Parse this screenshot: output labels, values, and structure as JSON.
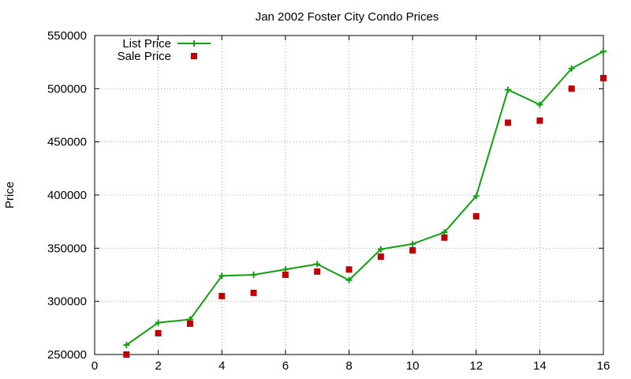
{
  "chart_data": {
    "type": "line",
    "title": "Jan 2002 Foster City Condo Prices",
    "xlabel": "",
    "ylabel": "Price",
    "xlim": [
      0,
      16
    ],
    "ylim": [
      250000,
      550000
    ],
    "x_ticks": [
      0,
      2,
      4,
      6,
      8,
      10,
      12,
      14,
      16
    ],
    "y_ticks": [
      250000,
      300000,
      350000,
      400000,
      450000,
      500000,
      550000
    ],
    "grid": true,
    "legend_position": "top-left",
    "series": [
      {
        "name": "List Price",
        "style": "linespoints",
        "marker": "plus",
        "color": "#10a010",
        "x": [
          1,
          2,
          3,
          4,
          5,
          6,
          7,
          8,
          9,
          10,
          11,
          12,
          13,
          14,
          15,
          16
        ],
        "values": [
          259000,
          280000,
          283000,
          324000,
          325000,
          330000,
          335000,
          320000,
          349000,
          354000,
          365000,
          399000,
          499000,
          485000,
          519000,
          535000
        ]
      },
      {
        "name": "Sale Price",
        "style": "points",
        "marker": "square",
        "color": "#c00000",
        "x": [
          1,
          2,
          3,
          4,
          5,
          6,
          7,
          8,
          9,
          10,
          11,
          12,
          13,
          14,
          15,
          16
        ],
        "values": [
          250000,
          270000,
          279000,
          305000,
          308000,
          325000,
          328000,
          330000,
          342000,
          348000,
          360000,
          380000,
          468000,
          470000,
          500000,
          510000
        ]
      }
    ]
  }
}
